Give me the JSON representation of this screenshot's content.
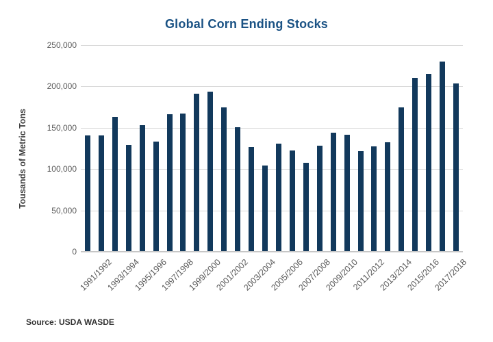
{
  "chart_data": {
    "type": "bar",
    "title": "Global Corn Ending Stocks",
    "ylabel": "Tousands of Metric Tons",
    "xlabel": "",
    "source_label": "Source: USDA WASDE",
    "ylim": [
      0,
      250000
    ],
    "ytick_values": [
      250000,
      200000,
      150000,
      100000,
      50000,
      0
    ],
    "ytick_labels": [
      "250,000",
      "200,000",
      "150,000",
      "100,000",
      "50,000",
      "0"
    ],
    "grid": true,
    "legend_position": "none",
    "categories": [
      "1990/1991",
      "1991/1992",
      "1992/1993",
      "1993/1994",
      "1994/1995",
      "1995/1996",
      "1996/1997",
      "1997/1998",
      "1998/1999",
      "1999/2000",
      "2000/2001",
      "2001/2002",
      "2002/2003",
      "2003/2004",
      "2004/2005",
      "2005/2006",
      "2006/2007",
      "2007/2008",
      "2008/2009",
      "2009/2010",
      "2010/2011",
      "2011/2012",
      "2012/2013",
      "2013/2014",
      "2014/2015",
      "2015/2016",
      "2016/2017",
      "2017/2018"
    ],
    "values": [
      141000,
      141000,
      163000,
      129500,
      153000,
      133500,
      166000,
      167000,
      191500,
      194000,
      175000,
      151000,
      126500,
      104000,
      131000,
      122500,
      108000,
      128000,
      144000,
      141500,
      122000,
      127500,
      132500,
      174500,
      210500,
      215000,
      230000,
      203500
    ],
    "visible_x_tick_labels": [
      "1991/1992",
      "1993/1994",
      "1995/1996",
      "1997/1998",
      "1999/2000",
      "2001/2002",
      "2003/2004",
      "2005/2006",
      "2007/2008",
      "2009/2010",
      "2011/2012",
      "2013/2014",
      "2015/2016",
      "2017/2018"
    ],
    "x_tick_first_shown_index": 1,
    "x_tick_shown_every": 2
  },
  "colors": {
    "background": "#ffffff",
    "title": "#1a5284",
    "bar": "#12395c",
    "gridline": "#d9d9d9",
    "axis_line": "#c6c6c6",
    "tick_text": "#595959",
    "axis_title_text": "#3f3f3f",
    "source_text": "#333333"
  }
}
